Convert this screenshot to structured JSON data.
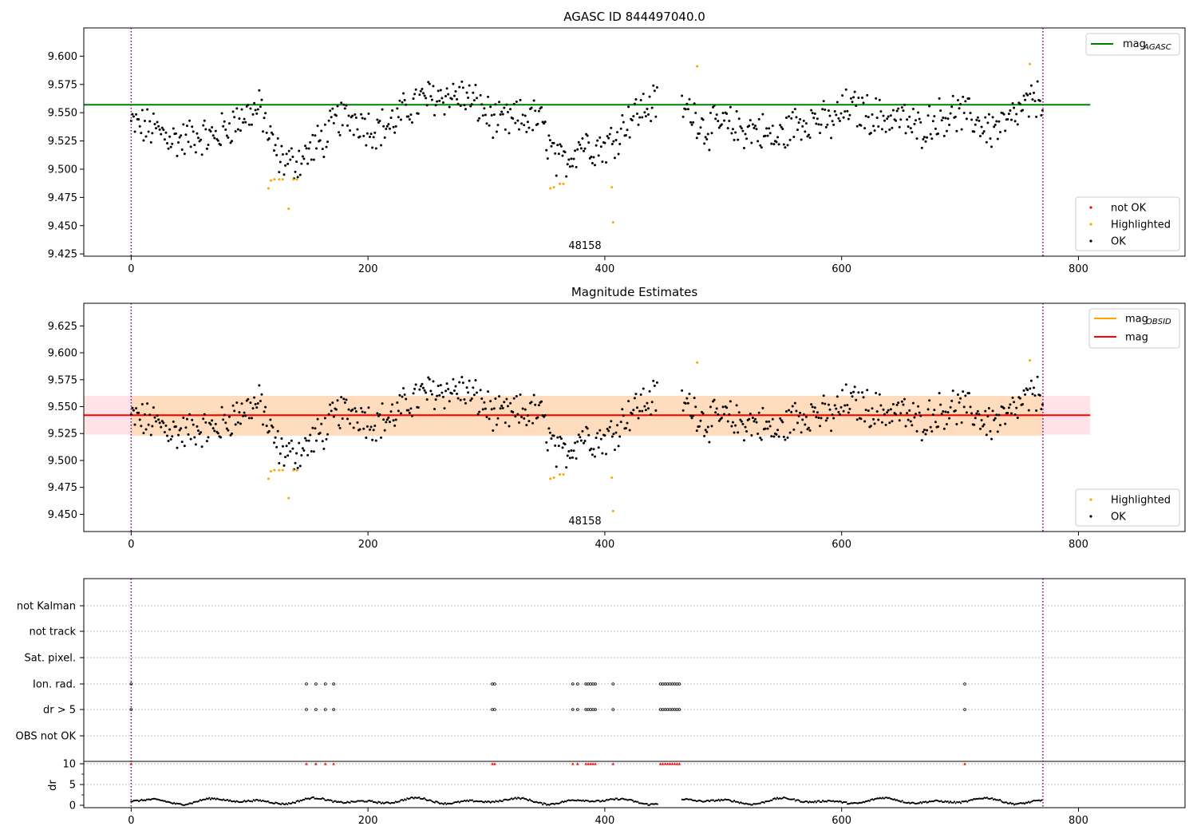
{
  "colors": {
    "ok": "#000000",
    "highlighted": "#ffa500",
    "not_ok": "#ff0000",
    "mag_agasc": "#008000",
    "mag_obsid": "#ffa500",
    "mag": "#ff0000",
    "vline": "#800080",
    "band_outer": "#ffc0cb",
    "band_inner": "#ffdab9"
  },
  "chart_data": [
    {
      "type": "scatter",
      "title": "AGASC ID 844497040.0",
      "xlim": [
        -40,
        890
      ],
      "ylim": [
        9.423,
        9.625
      ],
      "xticks": [
        0,
        200,
        400,
        600,
        800
      ],
      "xtick_labels": [
        "0",
        "200",
        "400",
        "600",
        "800"
      ],
      "yticks": [
        9.425,
        9.45,
        9.475,
        9.5,
        9.525,
        9.55,
        9.575,
        9.6
      ],
      "ytick_labels": [
        "9.425",
        "9.450",
        "9.475",
        "9.500",
        "9.525",
        "9.550",
        "9.575",
        "9.600"
      ],
      "obsid_label": "48158",
      "obsid_label_x": 385,
      "vlines": [
        0,
        770
      ],
      "mag_agasc": 9.557,
      "mag_agasc_xrange": [
        -40,
        810
      ],
      "legend_top": [
        {
          "label": "mag",
          "sub": "AGASC",
          "color": "#008000"
        }
      ],
      "legend_bottom": [
        {
          "label": "not OK",
          "color": "#ff0000"
        },
        {
          "label": "Highlighted",
          "color": "#ffa500"
        },
        {
          "label": "OK",
          "color": "#000000"
        }
      ],
      "highlighted": [
        [
          116,
          9.483
        ],
        [
          118,
          9.49
        ],
        [
          121,
          9.491
        ],
        [
          125,
          9.491
        ],
        [
          128,
          9.491
        ],
        [
          133,
          9.465
        ],
        [
          137,
          9.491
        ],
        [
          140,
          9.491
        ],
        [
          354,
          9.483
        ],
        [
          357,
          9.484
        ],
        [
          362,
          9.487
        ],
        [
          365,
          9.487
        ],
        [
          406,
          9.484
        ],
        [
          407,
          9.453
        ],
        [
          478,
          9.591
        ],
        [
          759,
          9.593
        ]
      ],
      "ok_profile": [
        [
          0,
          9.54
        ],
        [
          20,
          9.535
        ],
        [
          40,
          9.525
        ],
        [
          55,
          9.53
        ],
        [
          70,
          9.528
        ],
        [
          85,
          9.54
        ],
        [
          100,
          9.55
        ],
        [
          110,
          9.553
        ],
        [
          116,
          9.53
        ],
        [
          125,
          9.51
        ],
        [
          135,
          9.505
        ],
        [
          145,
          9.51
        ],
        [
          155,
          9.52
        ],
        [
          165,
          9.53
        ],
        [
          175,
          9.545
        ],
        [
          190,
          9.545
        ],
        [
          205,
          9.535
        ],
        [
          220,
          9.54
        ],
        [
          235,
          9.555
        ],
        [
          250,
          9.563
        ],
        [
          265,
          9.565
        ],
        [
          280,
          9.565
        ],
        [
          295,
          9.555
        ],
        [
          310,
          9.54
        ],
        [
          330,
          9.545
        ],
        [
          345,
          9.545
        ],
        [
          352,
          9.525
        ],
        [
          360,
          9.505
        ],
        [
          370,
          9.51
        ],
        [
          380,
          9.525
        ],
        [
          390,
          9.52
        ],
        [
          400,
          9.52
        ],
        [
          410,
          9.53
        ],
        [
          420,
          9.545
        ],
        [
          435,
          9.555
        ],
        [
          445,
          9.56
        ],
        [
          460,
          9.555
        ],
        [
          475,
          9.55
        ],
        [
          485,
          9.535
        ],
        [
          500,
          9.54
        ],
        [
          515,
          9.535
        ],
        [
          530,
          9.535
        ],
        [
          545,
          9.525
        ],
        [
          560,
          9.54
        ],
        [
          575,
          9.545
        ],
        [
          590,
          9.54
        ],
        [
          605,
          9.555
        ],
        [
          620,
          9.55
        ],
        [
          635,
          9.545
        ],
        [
          650,
          9.545
        ],
        [
          665,
          9.535
        ],
        [
          680,
          9.545
        ],
        [
          695,
          9.55
        ],
        [
          710,
          9.545
        ],
        [
          725,
          9.535
        ],
        [
          740,
          9.54
        ],
        [
          755,
          9.555
        ],
        [
          770,
          9.565
        ]
      ]
    },
    {
      "type": "scatter",
      "title": "Magnitude Estimates",
      "xlim": [
        -40,
        890
      ],
      "ylim": [
        9.434,
        9.646
      ],
      "xticks": [
        0,
        200,
        400,
        600,
        800
      ],
      "xtick_labels": [
        "0",
        "200",
        "400",
        "600",
        "800"
      ],
      "yticks": [
        9.45,
        9.475,
        9.5,
        9.525,
        9.55,
        9.575,
        9.6,
        9.625
      ],
      "ytick_labels": [
        "9.450",
        "9.475",
        "9.500",
        "9.525",
        "9.550",
        "9.575",
        "9.600",
        "9.625"
      ],
      "obsid_label": "48158",
      "obsid_label_x": 385,
      "vlines": [
        0,
        770
      ],
      "mag": 9.542,
      "mag_obsid": 9.542,
      "band_outer": [
        9.524,
        9.56
      ],
      "band_inner": [
        9.523,
        9.56
      ],
      "band_xrange": [
        -40,
        810
      ],
      "legend_top": [
        {
          "label": "mag",
          "sub": "OBSID",
          "color": "#ffa500"
        },
        {
          "label": "mag",
          "sub": "",
          "color": "#ff0000"
        }
      ],
      "legend_bottom": [
        {
          "label": "Highlighted",
          "color": "#ffa500"
        },
        {
          "label": "OK",
          "color": "#000000"
        }
      ]
    },
    {
      "type": "scatter",
      "title": "",
      "xlim": [
        -40,
        890
      ],
      "xticks": [
        0,
        200,
        400,
        600,
        800
      ],
      "xtick_labels": [
        "0",
        "200",
        "400",
        "600",
        "800"
      ],
      "vlines": [
        0,
        770
      ],
      "flag_rows": [
        "not Kalman",
        "not track",
        "Sat. pixel.",
        "Ion. rad.",
        "dr > 5",
        "OBS not OK"
      ],
      "flag_points_x": [
        0,
        148,
        156,
        164,
        171,
        305,
        307,
        373,
        377,
        384,
        386,
        388,
        390,
        392,
        407,
        447,
        449,
        451,
        453,
        455,
        457,
        459,
        461,
        463,
        704
      ],
      "dr_yticks": [
        0,
        5,
        10
      ],
      "dr_ylabel": "dr",
      "dr_ylim": [
        -0.5,
        10.5
      ],
      "dr_high_value": 10
    }
  ]
}
